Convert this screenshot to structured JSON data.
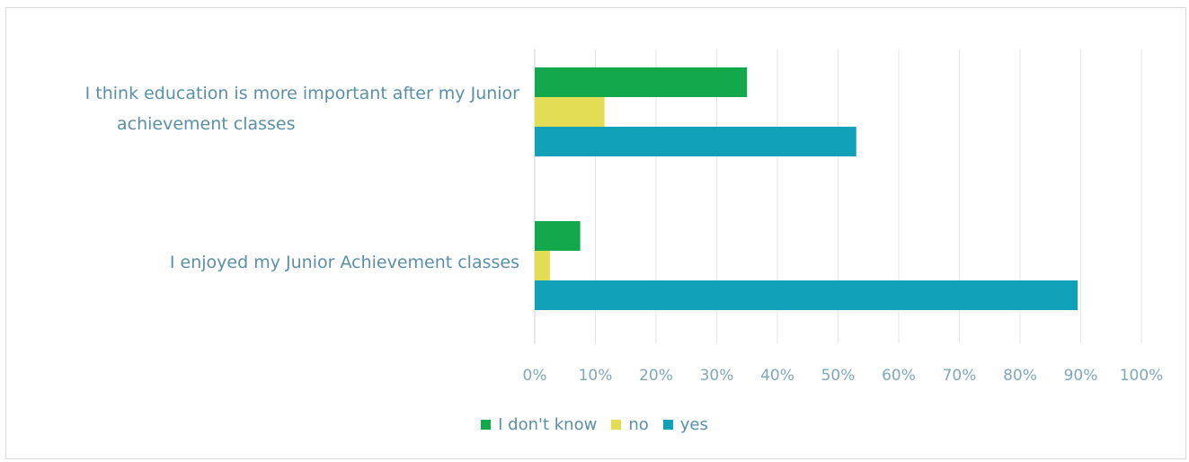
{
  "chart_data": {
    "type": "bar",
    "orientation": "horizontal",
    "categories": [
      "I think education is more important after my Junior achievement classes",
      "I enjoyed my Junior Achievement classes"
    ],
    "category_lines": [
      [
        "I think education is more important after my Junior",
        "achievement classes"
      ],
      [
        "I enjoyed my Junior Achievement classes"
      ]
    ],
    "series": [
      {
        "name": "I don't know",
        "color": "#13a84b",
        "values": [
          35,
          7.5
        ]
      },
      {
        "name": "no",
        "color": "#e3dd55",
        "values": [
          11.5,
          2.5
        ]
      },
      {
        "name": "yes",
        "color": "#10a1b8",
        "values": [
          53,
          89.5
        ]
      }
    ],
    "xlim": [
      0,
      100
    ],
    "x_ticks": [
      "0%",
      "10%",
      "20%",
      "30%",
      "40%",
      "50%",
      "60%",
      "70%",
      "80%",
      "90%",
      "100%"
    ],
    "grid": true,
    "legend_position": "bottom",
    "title": "",
    "xlabel": "",
    "ylabel": ""
  }
}
